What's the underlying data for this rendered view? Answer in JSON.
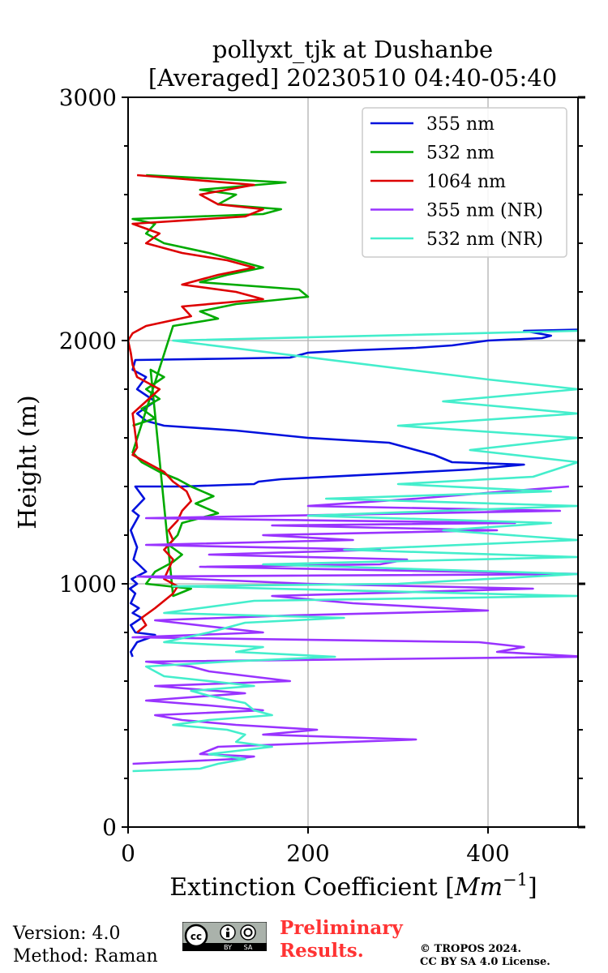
{
  "chart_data": {
    "type": "line",
    "title": [
      "pollyxt_tjk at Dushanbe",
      "[Averaged] 20230510 04:40-05:40"
    ],
    "xlabel": "Extinction Coefficient [Mm⁻¹]",
    "ylabel": "Height (m)",
    "xlim": [
      0,
      500
    ],
    "ylim": [
      0,
      3000
    ],
    "xticks": [
      0,
      200,
      400
    ],
    "yticks": [
      0,
      1000,
      2000,
      3000
    ],
    "xtick_labels": [
      "0",
      "200",
      "400"
    ],
    "ytick_labels": [
      "0",
      "1000",
      "2000",
      "3000"
    ],
    "grid": true,
    "legend_position": "top-right",
    "series": [
      {
        "name": "355 nm",
        "color": "#0011dd",
        "points": [
          [
            5,
            700
          ],
          [
            3,
            720
          ],
          [
            10,
            760
          ],
          [
            25,
            780
          ],
          [
            30,
            790
          ],
          [
            8,
            800
          ],
          [
            3,
            830
          ],
          [
            15,
            860
          ],
          [
            5,
            880
          ],
          [
            12,
            900
          ],
          [
            3,
            920
          ],
          [
            8,
            960
          ],
          [
            2,
            980
          ],
          [
            10,
            1000
          ],
          [
            4,
            1020
          ],
          [
            20,
            1050
          ],
          [
            6,
            1100
          ],
          [
            10,
            1150
          ],
          [
            3,
            1220
          ],
          [
            12,
            1280
          ],
          [
            5,
            1300
          ],
          [
            18,
            1350
          ],
          [
            8,
            1400
          ],
          [
            60,
            1400
          ],
          [
            140,
            1410
          ],
          [
            145,
            1420
          ],
          [
            170,
            1430
          ],
          [
            380,
            1470
          ],
          [
            440,
            1490
          ],
          [
            360,
            1500
          ],
          [
            340,
            1530
          ],
          [
            310,
            1560
          ],
          [
            290,
            1580
          ],
          [
            200,
            1600
          ],
          [
            120,
            1630
          ],
          [
            40,
            1650
          ],
          [
            20,
            1670
          ],
          [
            10,
            1700
          ],
          [
            30,
            1750
          ],
          [
            10,
            1800
          ],
          [
            20,
            1850
          ],
          [
            5,
            1880
          ],
          [
            8,
            1920
          ],
          [
            100,
            1925
          ],
          [
            180,
            1930
          ],
          [
            200,
            1950
          ],
          [
            250,
            1960
          ],
          [
            320,
            1970
          ],
          [
            360,
            1980
          ],
          [
            400,
            2000
          ],
          [
            460,
            2010
          ],
          [
            470,
            2020
          ],
          [
            440,
            2040
          ],
          [
            500,
            2045
          ]
        ]
      },
      {
        "name": "532 nm",
        "color": "#00aa00",
        "points": [
          [
            5,
            1650
          ],
          [
            30,
            1680
          ],
          [
            15,
            1720
          ],
          [
            35,
            1760
          ],
          [
            20,
            1800
          ],
          [
            40,
            1850
          ],
          [
            25,
            1880
          ],
          [
            50,
            950
          ],
          [
            70,
            980
          ],
          [
            20,
            1000
          ],
          [
            30,
            1050
          ],
          [
            50,
            1090
          ],
          [
            60,
            1120
          ],
          [
            45,
            1160
          ],
          [
            55,
            1200
          ],
          [
            60,
            1250
          ],
          [
            100,
            1290
          ],
          [
            75,
            1330
          ],
          [
            95,
            1360
          ],
          [
            70,
            1400
          ],
          [
            55,
            1430
          ],
          [
            35,
            1460
          ],
          [
            15,
            1500
          ],
          [
            5,
            1540
          ],
          [
            50,
            2060
          ],
          [
            100,
            2090
          ],
          [
            80,
            2120
          ],
          [
            120,
            2150
          ],
          [
            200,
            2180
          ],
          [
            190,
            2210
          ],
          [
            80,
            2240
          ],
          [
            110,
            2270
          ],
          [
            150,
            2300
          ],
          [
            120,
            2330
          ],
          [
            90,
            2360
          ],
          [
            40,
            2400
          ],
          [
            20,
            2440
          ],
          [
            30,
            2480
          ],
          [
            5,
            2500
          ],
          [
            150,
            2520
          ],
          [
            170,
            2540
          ],
          [
            100,
            2560
          ],
          [
            120,
            2600
          ],
          [
            80,
            2620
          ],
          [
            175,
            2650
          ],
          [
            20,
            2680
          ]
        ]
      },
      {
        "name": "1064 nm",
        "color": "#dd0000",
        "points": [
          [
            10,
            800
          ],
          [
            20,
            830
          ],
          [
            15,
            860
          ],
          [
            30,
            900
          ],
          [
            40,
            930
          ],
          [
            50,
            960
          ],
          [
            55,
            990
          ],
          [
            40,
            1020
          ],
          [
            45,
            1060
          ],
          [
            50,
            1100
          ],
          [
            40,
            1140
          ],
          [
            50,
            1180
          ],
          [
            45,
            1220
          ],
          [
            55,
            1260
          ],
          [
            60,
            1300
          ],
          [
            70,
            1340
          ],
          [
            65,
            1380
          ],
          [
            50,
            1420
          ],
          [
            40,
            1460
          ],
          [
            20,
            1500
          ],
          [
            5,
            1530
          ],
          [
            10,
            1560
          ],
          [
            5,
            1700
          ],
          [
            20,
            1750
          ],
          [
            35,
            1800
          ],
          [
            10,
            1850
          ],
          [
            5,
            1900
          ],
          [
            3,
            1950
          ],
          [
            0,
            2000
          ],
          [
            5,
            2030
          ],
          [
            20,
            2060
          ],
          [
            70,
            2100
          ],
          [
            60,
            2140
          ],
          [
            150,
            2170
          ],
          [
            120,
            2200
          ],
          [
            60,
            2230
          ],
          [
            100,
            2270
          ],
          [
            140,
            2300
          ],
          [
            110,
            2330
          ],
          [
            60,
            2360
          ],
          [
            20,
            2400
          ],
          [
            35,
            2440
          ],
          [
            5,
            2480
          ],
          [
            130,
            2510
          ],
          [
            150,
            2540
          ],
          [
            100,
            2560
          ],
          [
            80,
            2600
          ],
          [
            140,
            2640
          ],
          [
            10,
            2680
          ]
        ]
      },
      {
        "name": "355 nm (NR)",
        "color": "#9933ff",
        "points": [
          [
            5,
            260
          ],
          [
            120,
            280
          ],
          [
            140,
            290
          ],
          [
            80,
            300
          ],
          [
            100,
            330
          ],
          [
            320,
            360
          ],
          [
            150,
            380
          ],
          [
            210,
            400
          ],
          [
            120,
            420
          ],
          [
            60,
            440
          ],
          [
            30,
            460
          ],
          [
            150,
            480
          ],
          [
            90,
            500
          ],
          [
            20,
            520
          ],
          [
            130,
            550
          ],
          [
            30,
            580
          ],
          [
            180,
            600
          ],
          [
            90,
            640
          ],
          [
            70,
            660
          ],
          [
            20,
            680
          ],
          [
            510,
            700
          ],
          [
            410,
            720
          ],
          [
            440,
            740
          ],
          [
            390,
            760
          ],
          [
            5,
            780
          ],
          [
            150,
            800
          ],
          [
            30,
            850
          ],
          [
            180,
            870
          ],
          [
            400,
            890
          ],
          [
            250,
            920
          ],
          [
            160,
            950
          ],
          [
            450,
            980
          ],
          [
            200,
            1000
          ],
          [
            10,
            1030
          ],
          [
            510,
            1040
          ],
          [
            80,
            1070
          ],
          [
            280,
            1080
          ],
          [
            310,
            1100
          ],
          [
            90,
            1120
          ],
          [
            280,
            1140
          ],
          [
            20,
            1160
          ],
          [
            250,
            1180
          ],
          [
            150,
            1200
          ],
          [
            410,
            1220
          ],
          [
            160,
            1240
          ],
          [
            430,
            1250
          ],
          [
            20,
            1270
          ],
          [
            480,
            1300
          ],
          [
            200,
            1320
          ],
          [
            320,
            1350
          ],
          [
            420,
            1380
          ],
          [
            490,
            1400
          ]
        ]
      },
      {
        "name": "532 nm (NR)",
        "color": "#44eecc",
        "points": [
          [
            5,
            230
          ],
          [
            80,
            240
          ],
          [
            100,
            260
          ],
          [
            130,
            280
          ],
          [
            90,
            300
          ],
          [
            160,
            330
          ],
          [
            120,
            350
          ],
          [
            130,
            380
          ],
          [
            110,
            400
          ],
          [
            50,
            420
          ],
          [
            90,
            440
          ],
          [
            160,
            460
          ],
          [
            140,
            480
          ],
          [
            130,
            510
          ],
          [
            90,
            540
          ],
          [
            70,
            560
          ],
          [
            140,
            580
          ],
          [
            40,
            620
          ],
          [
            20,
            660
          ],
          [
            110,
            680
          ],
          [
            230,
            700
          ],
          [
            120,
            720
          ],
          [
            150,
            740
          ],
          [
            40,
            760
          ],
          [
            90,
            800
          ],
          [
            130,
            840
          ],
          [
            240,
            860
          ],
          [
            40,
            880
          ],
          [
            80,
            900
          ],
          [
            140,
            930
          ],
          [
            500,
            950
          ],
          [
            50,
            990
          ],
          [
            300,
            1000
          ],
          [
            500,
            1040
          ],
          [
            150,
            1080
          ],
          [
            500,
            1110
          ],
          [
            240,
            1140
          ],
          [
            500,
            1180
          ],
          [
            350,
            1220
          ],
          [
            470,
            1250
          ],
          [
            200,
            1280
          ],
          [
            500,
            1320
          ],
          [
            220,
            1350
          ],
          [
            470,
            1380
          ],
          [
            300,
            1410
          ],
          [
            450,
            1440
          ],
          [
            500,
            1500
          ],
          [
            380,
            1550
          ],
          [
            500,
            1600
          ],
          [
            300,
            1650
          ],
          [
            500,
            1700
          ],
          [
            350,
            1750
          ],
          [
            500,
            1800
          ],
          [
            400,
            1840
          ],
          [
            50,
            2000
          ],
          [
            500,
            2040
          ]
        ]
      }
    ]
  },
  "footer": {
    "version": "Version: 4.0",
    "method": "Method: Raman",
    "license_badge": [
      "cc",
      "BY",
      "SA"
    ],
    "preliminary_line1": "Preliminary",
    "preliminary_line2": "Results.",
    "copyright_line1": "© TROPOS 2024.",
    "copyright_line2": "CC BY SA 4.0 License."
  }
}
